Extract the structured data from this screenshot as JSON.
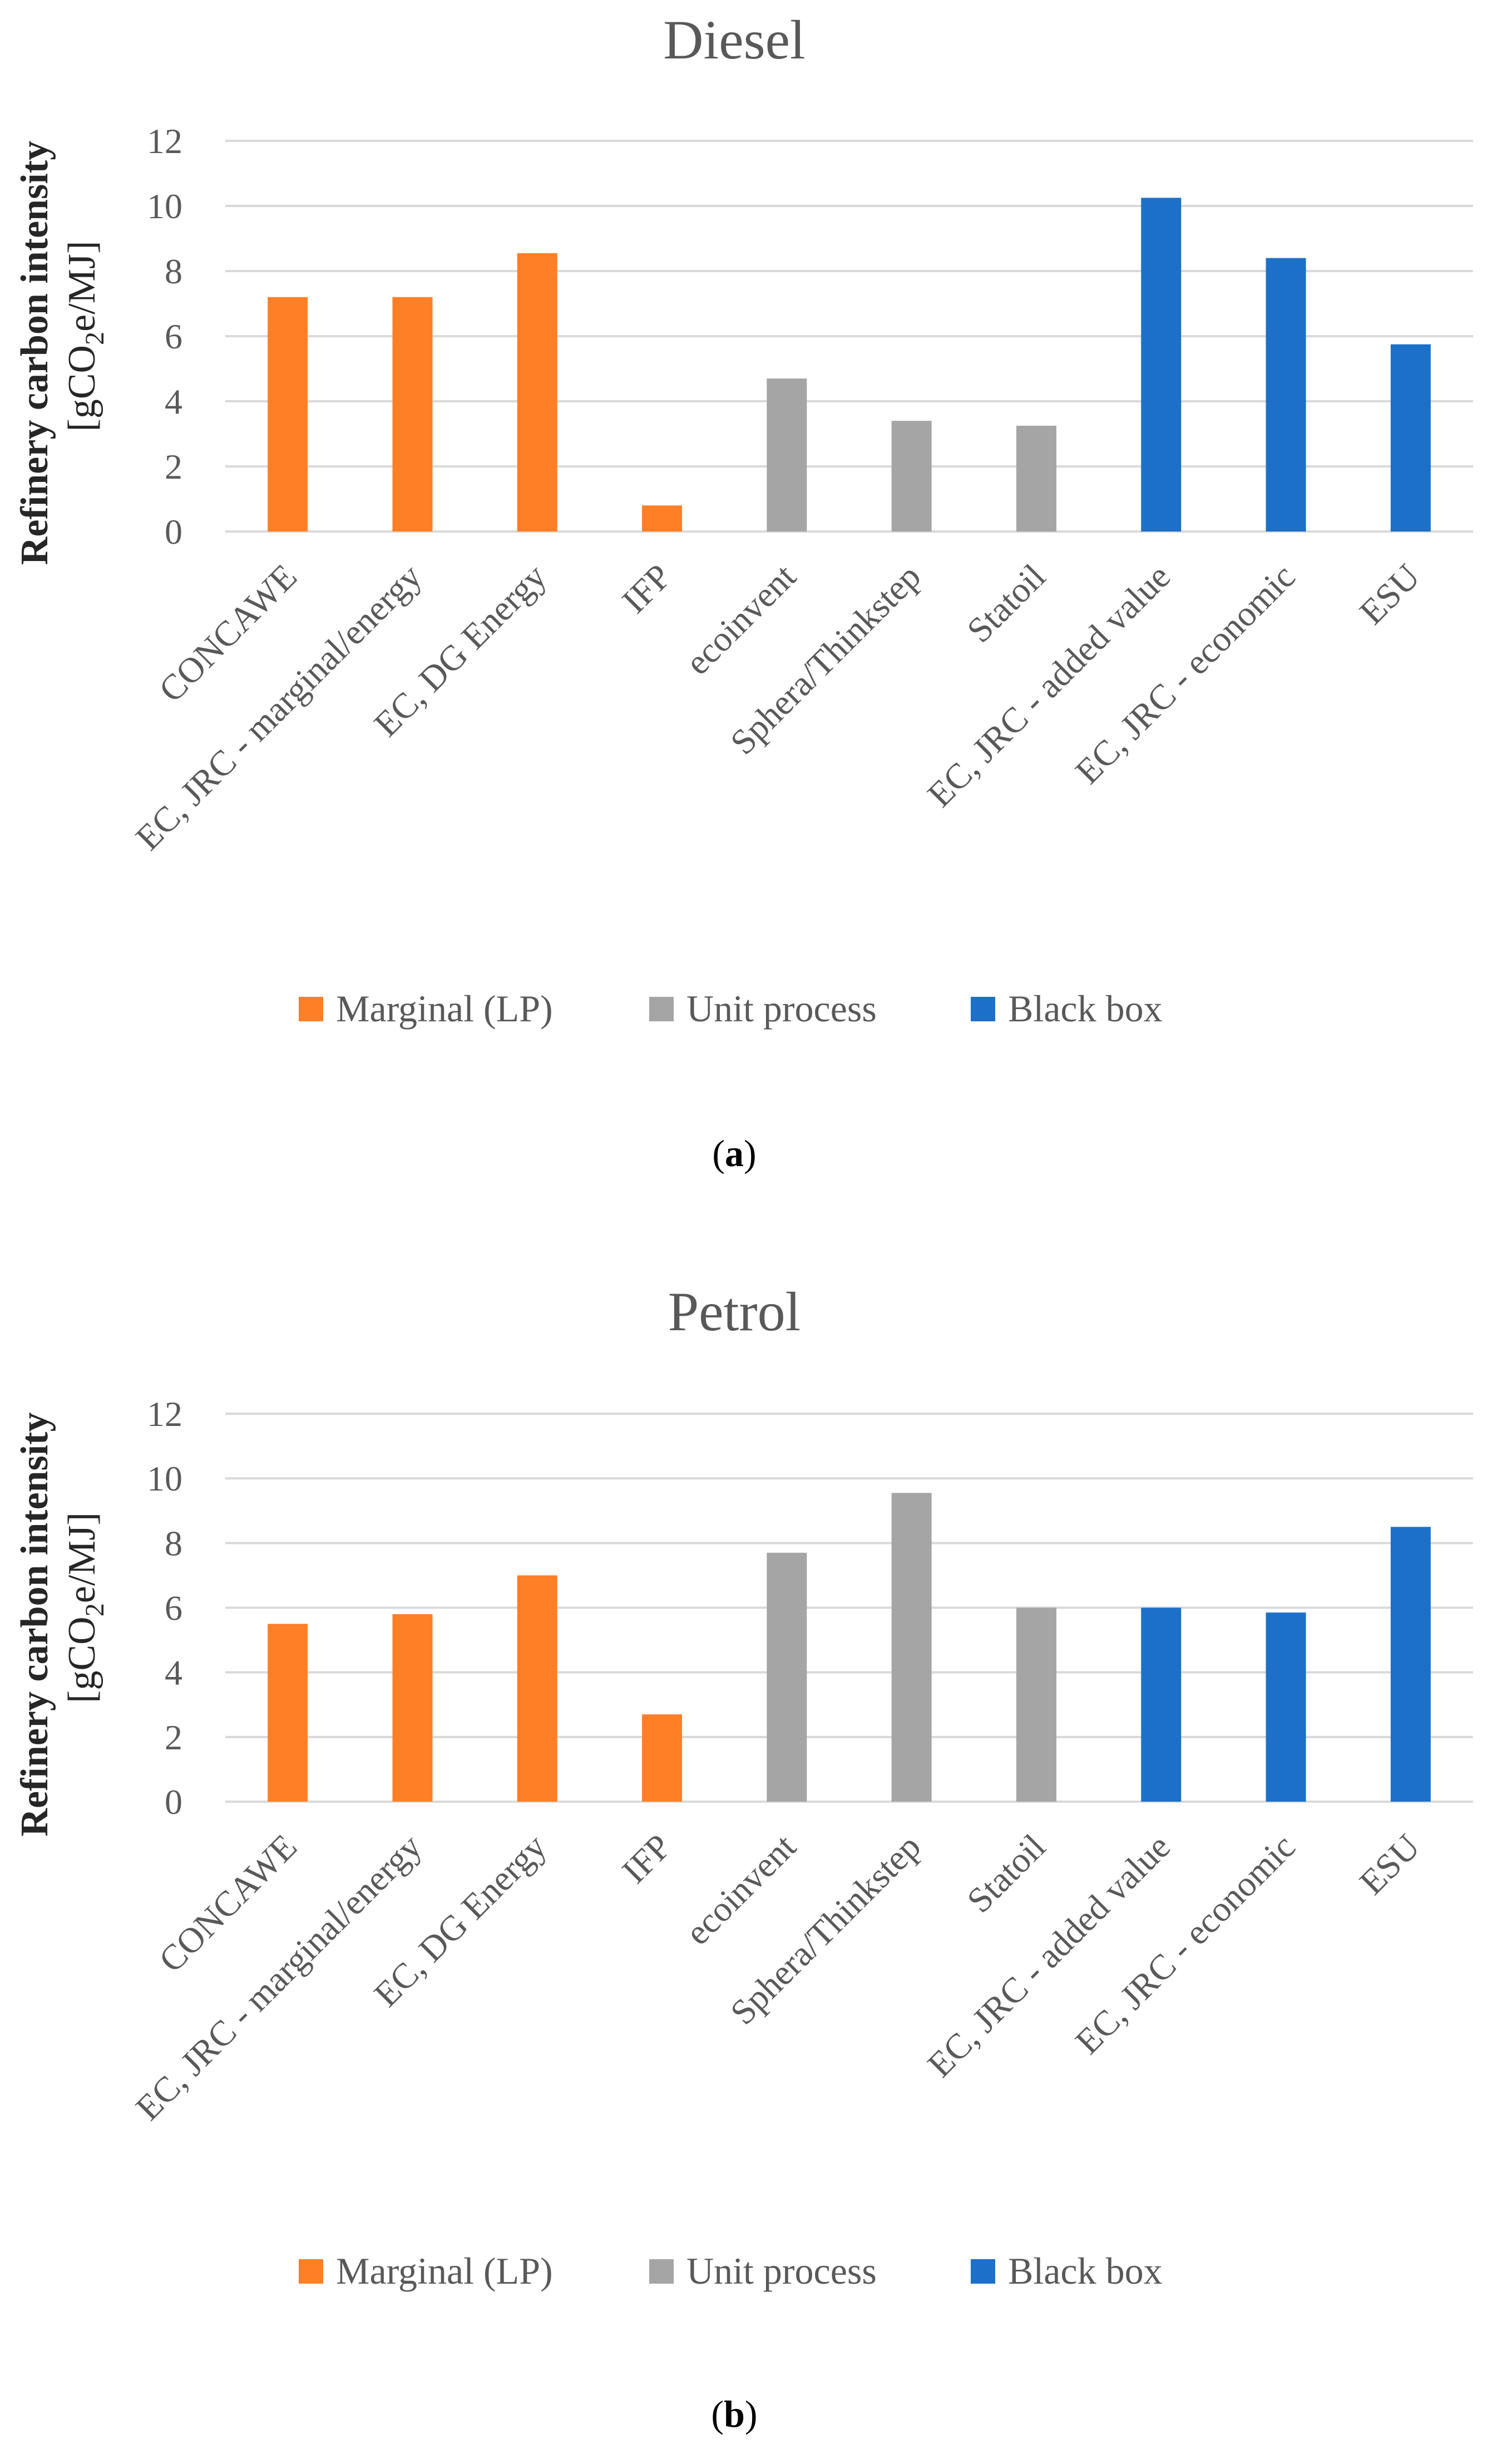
{
  "colors": {
    "marginal": "#ff7f27",
    "unit_process": "#a5a5a5",
    "black_box": "#1d70c8",
    "gridline": "#d9d9d9",
    "text": "#595959"
  },
  "legend": [
    "Marginal (LP)",
    "Unit process",
    "Black box"
  ],
  "y_axis_label": {
    "line1": "Refinery carbon intensity",
    "line2_prefix": "[gCO",
    "line2_sub": "2",
    "line2_suffix": "e/MJ]"
  },
  "chart_data": [
    {
      "type": "bar",
      "title": "Diesel",
      "panel_label": "a",
      "categories": [
        "CONCAWE",
        "EC, JRC - marginal/energy",
        "EC, DG Energy",
        "IFP",
        "ecoinvent",
        "Sphera/Thinkstep",
        "Statoil",
        "EC, JRC - added value",
        "EC, JRC - economic",
        "ESU"
      ],
      "groups": [
        "Marginal (LP)",
        "Marginal (LP)",
        "Marginal (LP)",
        "Marginal (LP)",
        "Unit process",
        "Unit process",
        "Unit process",
        "Black box",
        "Black box",
        "Black box"
      ],
      "values": [
        7.2,
        7.2,
        8.55,
        0.8,
        4.7,
        3.4,
        3.25,
        10.25,
        8.4,
        5.75
      ],
      "ylim": [
        0,
        12
      ],
      "yticks": [
        0,
        2,
        4,
        6,
        8,
        10,
        12
      ],
      "ylabel": "Refinery carbon intensity [gCO2e/MJ]",
      "grid": true,
      "legend_position": "bottom"
    },
    {
      "type": "bar",
      "title": "Petrol",
      "panel_label": "b",
      "categories": [
        "CONCAWE",
        "EC, JRC - marginal/energy",
        "EC, DG Energy",
        "IFP",
        "ecoinvent",
        "Sphera/Thinkstep",
        "Statoil",
        "EC, JRC - added value",
        "EC, JRC - economic",
        "ESU"
      ],
      "groups": [
        "Marginal (LP)",
        "Marginal (LP)",
        "Marginal (LP)",
        "Marginal (LP)",
        "Unit process",
        "Unit process",
        "Unit process",
        "Black box",
        "Black box",
        "Black box"
      ],
      "values": [
        5.5,
        5.8,
        7.0,
        2.7,
        7.7,
        9.55,
        6.0,
        6.0,
        5.85,
        8.5
      ],
      "ylim": [
        0,
        12
      ],
      "yticks": [
        0,
        2,
        4,
        6,
        8,
        10,
        12
      ],
      "ylabel": "Refinery carbon intensity [gCO2e/MJ]",
      "grid": true,
      "legend_position": "bottom"
    }
  ]
}
